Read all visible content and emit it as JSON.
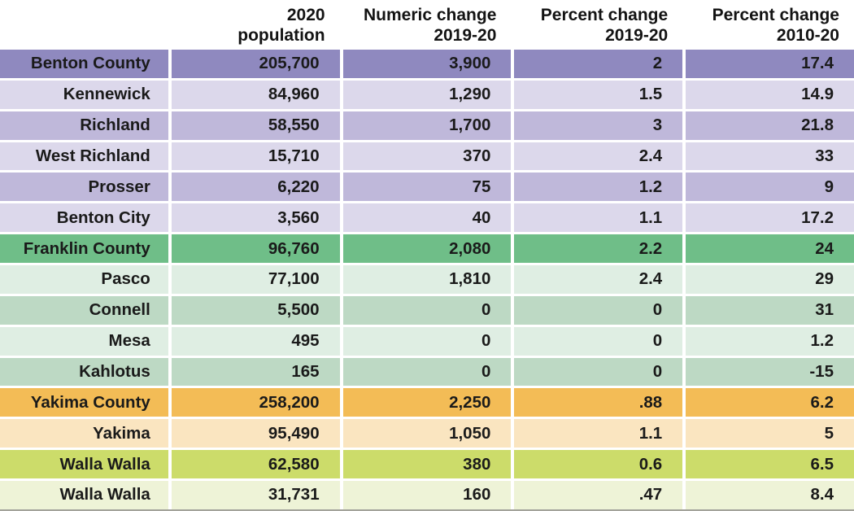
{
  "chart_data": {
    "type": "table",
    "title": "",
    "columns": [
      {
        "line1": "",
        "line2": ""
      },
      {
        "line1": "2020",
        "line2": "population"
      },
      {
        "line1": "Numeric change",
        "line2": "2019-20"
      },
      {
        "line1": "Percent change",
        "line2": "2019-20"
      },
      {
        "line1": "Percent change",
        "line2": "2010-20"
      }
    ],
    "rows": [
      {
        "name": "Benton County",
        "cells": [
          "205,700",
          "3,900",
          "2",
          "17.4"
        ],
        "tone": "purple_dark"
      },
      {
        "name": "Kennewick",
        "cells": [
          "84,960",
          "1,290",
          "1.5",
          "14.9"
        ],
        "tone": "purple_light"
      },
      {
        "name": "Richland",
        "cells": [
          "58,550",
          "1,700",
          "3",
          "21.8"
        ],
        "tone": "purple_mid"
      },
      {
        "name": "West Richland",
        "cells": [
          "15,710",
          "370",
          "2.4",
          "33"
        ],
        "tone": "purple_light"
      },
      {
        "name": "Prosser",
        "cells": [
          "6,220",
          "75",
          "1.2",
          "9"
        ],
        "tone": "purple_mid"
      },
      {
        "name": "Benton City",
        "cells": [
          "3,560",
          "40",
          "1.1",
          "17.2"
        ],
        "tone": "purple_light"
      },
      {
        "name": "Franklin County",
        "cells": [
          "96,760",
          "2,080",
          "2.2",
          "24"
        ],
        "tone": "green_dark"
      },
      {
        "name": "Pasco",
        "cells": [
          "77,100",
          "1,810",
          "2.4",
          "29"
        ],
        "tone": "green_light"
      },
      {
        "name": "Connell",
        "cells": [
          "5,500",
          "0",
          "0",
          "31"
        ],
        "tone": "green_mid"
      },
      {
        "name": "Mesa",
        "cells": [
          "495",
          "0",
          "0",
          "1.2"
        ],
        "tone": "green_light"
      },
      {
        "name": "Kahlotus",
        "cells": [
          "165",
          "0",
          "0",
          "-15"
        ],
        "tone": "green_mid"
      },
      {
        "name": "Yakima County",
        "cells": [
          "258,200",
          "2,250",
          ".88",
          "6.2"
        ],
        "tone": "orange_dark"
      },
      {
        "name": "Yakima",
        "cells": [
          "95,490",
          "1,050",
          "1.1",
          "5"
        ],
        "tone": "orange_light"
      },
      {
        "name": "Walla Walla",
        "cells": [
          "62,580",
          "380",
          "0.6",
          "6.5"
        ],
        "tone": "yellowgreen_dark"
      },
      {
        "name": "Walla Walla",
        "cells": [
          "31,731",
          "160",
          ".47",
          "8.4"
        ],
        "tone": "yellowgreen_light"
      }
    ]
  },
  "colors": {
    "purple_dark": "#8f89bf",
    "purple_light": "#dcd8eb",
    "purple_mid": "#bfb8da",
    "green_dark": "#6fbe88",
    "green_light": "#dfeee3",
    "green_mid": "#bdd9c4",
    "orange_dark": "#f3bc56",
    "orange_light": "#fae5c0",
    "yellowgreen_dark": "#ccdc6a",
    "yellowgreen_light": "#eef3d7",
    "bottom_border": "#a3a39b",
    "text": "#1a1a1a"
  }
}
